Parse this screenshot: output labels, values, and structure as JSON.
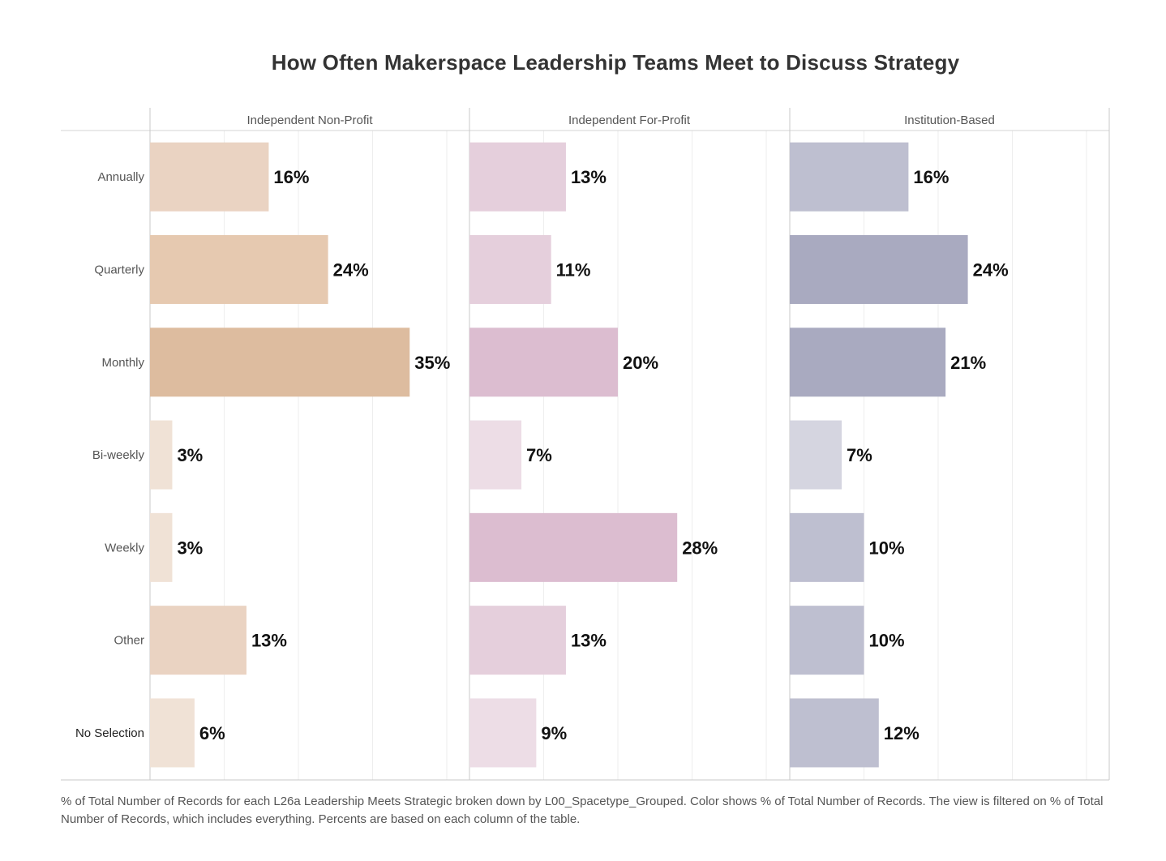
{
  "chart_data": {
    "type": "bar",
    "orientation": "horizontal",
    "title": "How Often Makerspace Leadership Teams Meet to Discuss Strategy",
    "categories": [
      "Annually",
      "Quarterly",
      "Monthly",
      "Bi-weekly",
      "Weekly",
      "Other",
      "No Selection"
    ],
    "series": [
      {
        "name": "Independent Non-Profit",
        "values": [
          16,
          24,
          35,
          3,
          3,
          13,
          6
        ],
        "labels": [
          "16%",
          "24%",
          "35%",
          "3%",
          "3%",
          "13%",
          "6%"
        ],
        "colors": [
          "#ead3c2",
          "#e6c9b0",
          "#ddbc9f",
          "#f0e2d6",
          "#f0e2d6",
          "#ead3c2",
          "#f0e2d6"
        ]
      },
      {
        "name": "Independent For-Profit",
        "values": [
          13,
          11,
          20,
          7,
          28,
          13,
          9
        ],
        "labels": [
          "13%",
          "11%",
          "20%",
          "7%",
          "28%",
          "13%",
          "9%"
        ],
        "colors": [
          "#e5cfdc",
          "#e5cfdc",
          "#dcbdd0",
          "#eddde6",
          "#dcbdd0",
          "#e5cfdc",
          "#eddde6"
        ]
      },
      {
        "name": "Institution-Based",
        "values": [
          16,
          24,
          21,
          7,
          10,
          10,
          12
        ],
        "labels": [
          "16%",
          "24%",
          "21%",
          "7%",
          "10%",
          "10%",
          "12%"
        ],
        "colors": [
          "#bebfd0",
          "#a9aac0",
          "#a9aac0",
          "#d5d5e0",
          "#bebfd0",
          "#bebfd0",
          "#bebfd0"
        ]
      }
    ],
    "xlim": [
      0,
      40
    ],
    "grid": true,
    "caption": "% of Total Number of Records for each L26a Leadership Meets Strategic broken down by L00_Spacetype_Grouped.  Color shows % of Total Number of Records. The view is filtered on % of Total Number of Records, which includes everything. Percents are based on each column of the table."
  }
}
